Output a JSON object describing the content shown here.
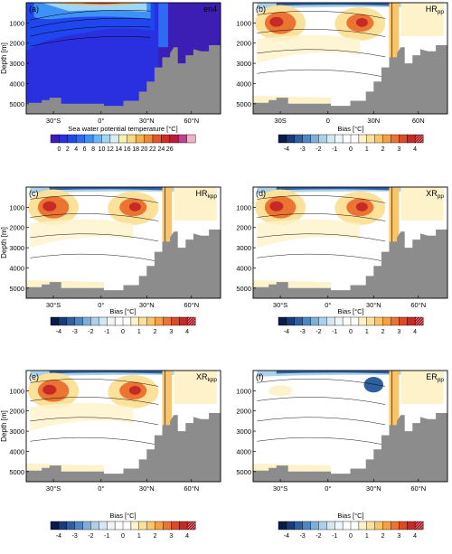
{
  "chart_data": [
    {
      "type": "heatmap",
      "panel_label": "(a)",
      "title": "en4",
      "title_sub": "",
      "ylabel": "Depth [m]",
      "yticks": [
        "1000",
        "2000",
        "3000",
        "4000",
        "5000"
      ],
      "ylim": [
        0,
        5500
      ],
      "xticks": [
        "30°S",
        "0°",
        "30°N",
        "60°N"
      ],
      "colorbar": {
        "title": "Sea water potential temperature [°C]",
        "labels": [
          "0",
          "2",
          "4",
          "6",
          "8",
          "10",
          "12",
          "14",
          "16",
          "18",
          "20",
          "22",
          "24",
          "26"
        ],
        "colors": [
          "#3d1eb5",
          "#2a2fe0",
          "#2046f0",
          "#2c6bf2",
          "#3f92f5",
          "#66b8f5",
          "#9fd6f5",
          "#d6ecf2",
          "#f8f0b0",
          "#f8d980",
          "#f5b04a",
          "#f08a33",
          "#e4552a",
          "#cf2d27",
          "#b81d3e",
          "#c0408e",
          "#f0b0c8"
        ]
      }
    },
    {
      "type": "heatmap",
      "panel_label": "(b)",
      "title": "HR",
      "title_sub": "pp",
      "ylabel": "",
      "yticks": [
        "1000",
        "2000",
        "3000",
        "4000",
        "5000"
      ],
      "ylim": [
        0,
        5500
      ],
      "xticks": [
        "30S",
        "0",
        "30N",
        "60N"
      ],
      "colorbar": {
        "title": "Bias [°C]",
        "labels": [
          "-4",
          "-3",
          "-2",
          "-1",
          "0",
          "1",
          "2",
          "3",
          "4"
        ],
        "colors": [
          "#0a1a4a",
          "#1c3a75",
          "#2e5f9e",
          "#4f86bf",
          "#7eafd8",
          "#acd0e8",
          "#d4e8f2",
          "#eef6fa",
          "#ffffff",
          "#ffffff",
          "#fdf2c9",
          "#fbe19a",
          "#f9c46a",
          "#f5a044",
          "#ec7433",
          "#dd4a2a",
          "#c52a26",
          "#a81c2b"
        ]
      }
    },
    {
      "type": "heatmap",
      "panel_label": "(c)",
      "title": "HR",
      "title_sub": "kpp",
      "ylabel": "Depth [m]",
      "yticks": [
        "1000",
        "2000",
        "3000",
        "4000",
        "5000"
      ],
      "ylim": [
        0,
        5500
      ],
      "xticks": [
        "30°S",
        "0°",
        "30°N",
        "60°N"
      ],
      "colorbar": {
        "title": "Bias [°C]",
        "labels": [
          "-4",
          "-3",
          "-2",
          "-1",
          "0",
          "1",
          "2",
          "3",
          "4"
        ],
        "colors": [
          "#0a1a4a",
          "#1c3a75",
          "#2e5f9e",
          "#4f86bf",
          "#7eafd8",
          "#acd0e8",
          "#d4e8f2",
          "#eef6fa",
          "#ffffff",
          "#ffffff",
          "#fdf2c9",
          "#fbe19a",
          "#f9c46a",
          "#f5a044",
          "#ec7433",
          "#dd4a2a",
          "#c52a26",
          "#a81c2b"
        ]
      }
    },
    {
      "type": "heatmap",
      "panel_label": "(d)",
      "title": "XR",
      "title_sub": "pp",
      "ylabel": "",
      "yticks": [
        "1000",
        "2000",
        "3000",
        "4000",
        "5000"
      ],
      "ylim": [
        0,
        5500
      ],
      "xticks": [
        "30°S",
        "0°",
        "30°N",
        "60°N"
      ],
      "colorbar": {
        "title": "Bias [°C]",
        "labels": [
          "-4",
          "-3",
          "-2",
          "-1",
          "0",
          "1",
          "2",
          "3",
          "4"
        ],
        "colors": [
          "#0a1a4a",
          "#1c3a75",
          "#2e5f9e",
          "#4f86bf",
          "#7eafd8",
          "#acd0e8",
          "#d4e8f2",
          "#eef6fa",
          "#ffffff",
          "#ffffff",
          "#fdf2c9",
          "#fbe19a",
          "#f9c46a",
          "#f5a044",
          "#ec7433",
          "#dd4a2a",
          "#c52a26",
          "#a81c2b"
        ]
      }
    },
    {
      "type": "heatmap",
      "panel_label": "(e)",
      "title": "XR",
      "title_sub": "kpp",
      "ylabel": "Depth [m]",
      "yticks": [
        "1000",
        "2000",
        "3000",
        "4000",
        "5000"
      ],
      "ylim": [
        0,
        5500
      ],
      "xticks": [
        "30°S",
        "0°",
        "30°N",
        "60°N"
      ],
      "colorbar": {
        "title": "Bias [°C]",
        "labels": [
          "-4",
          "-3",
          "-2",
          "-1",
          "0",
          "1",
          "2",
          "3",
          "4"
        ],
        "colors": [
          "#0a1a4a",
          "#1c3a75",
          "#2e5f9e",
          "#4f86bf",
          "#7eafd8",
          "#acd0e8",
          "#d4e8f2",
          "#eef6fa",
          "#ffffff",
          "#ffffff",
          "#fdf2c9",
          "#fbe19a",
          "#f9c46a",
          "#f5a044",
          "#ec7433",
          "#dd4a2a",
          "#c52a26",
          "#a81c2b"
        ]
      }
    },
    {
      "type": "heatmap",
      "panel_label": "(f)",
      "title": "ER",
      "title_sub": "pp",
      "ylabel": "",
      "yticks": [
        "1000",
        "2000",
        "3000",
        "4000",
        "5000"
      ],
      "ylim": [
        0,
        5500
      ],
      "xticks": [
        "30°S",
        "0°",
        "30°N",
        "60°N"
      ],
      "colorbar": {
        "title": "Bias [°C]",
        "labels": [
          "-4",
          "-3",
          "-2",
          "-1",
          "0",
          "1",
          "2",
          "3",
          "4"
        ],
        "colors": [
          "#0a1a4a",
          "#1c3a75",
          "#2e5f9e",
          "#4f86bf",
          "#7eafd8",
          "#acd0e8",
          "#d4e8f2",
          "#eef6fa",
          "#ffffff",
          "#ffffff",
          "#fdf2c9",
          "#fbe19a",
          "#f9c46a",
          "#f5a044",
          "#ec7433",
          "#dd4a2a",
          "#c52a26",
          "#a81c2b"
        ]
      }
    }
  ],
  "colors": {
    "topography": "#8c8c8c",
    "frame": "#000000"
  }
}
